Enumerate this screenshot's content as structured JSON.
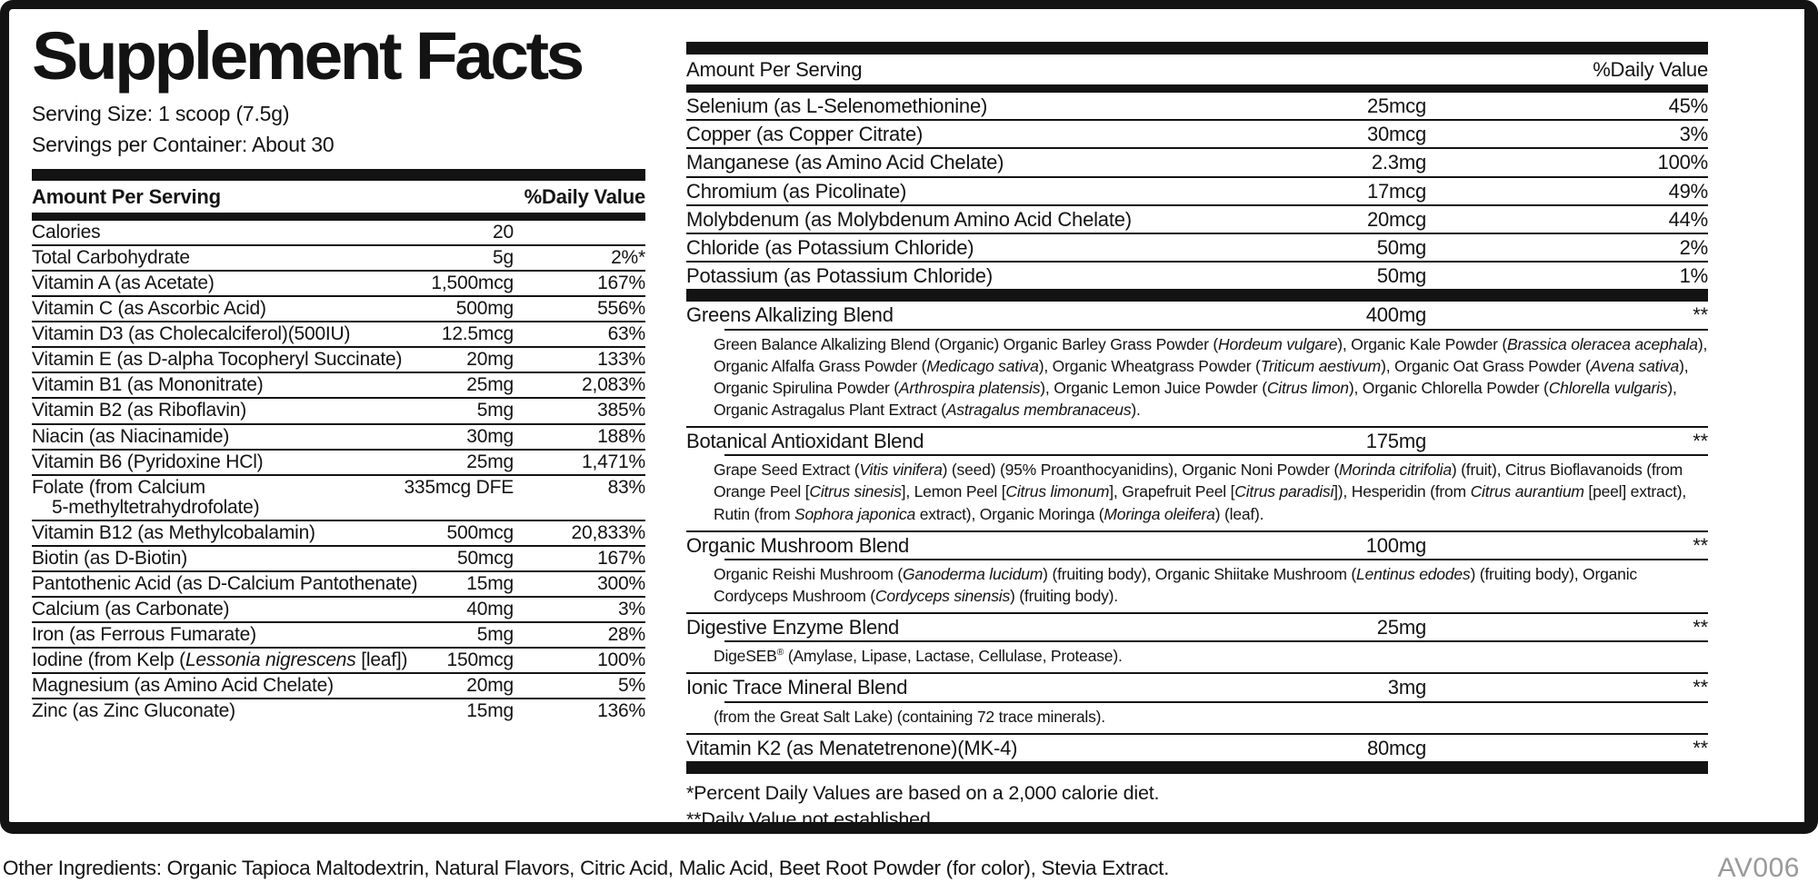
{
  "label": {
    "title": "Supplement Facts",
    "serving_size": "Serving Size: 1 scoop (7.5g)",
    "servings_per_container": "Servings per Container: About 30",
    "column_headers": {
      "amount": "Amount Per Serving",
      "daily_value": "%Daily Value"
    },
    "left_rows": [
      {
        "name": "Calories",
        "amount": "20",
        "dv": ""
      },
      {
        "name": "Total Carbohydrate",
        "amount": "5g",
        "dv": "2%*"
      },
      {
        "name": "Vitamin A (as Acetate)",
        "amount": "1,500mcg",
        "dv": "167%"
      },
      {
        "name": "Vitamin C (as Ascorbic Acid)",
        "amount": "500mg",
        "dv": "556%"
      },
      {
        "name": "Vitamin D3 (as Cholecalciferol)(500IU)",
        "amount": "12.5mcg",
        "dv": "63%"
      },
      {
        "name": "Vitamin E (as D-alpha Tocopheryl Succinate)",
        "amount": "20mg",
        "dv": "133%"
      },
      {
        "name": "Vitamin B1 (as Mononitrate)",
        "amount": "25mg",
        "dv": "2,083%"
      },
      {
        "name": "Vitamin B2 (as Riboflavin)",
        "amount": "5mg",
        "dv": "385%"
      },
      {
        "name": "Niacin (as Niacinamide)",
        "amount": "30mg",
        "dv": "188%"
      },
      {
        "name": "Vitamin B6 (Pyridoxine HCl)",
        "amount": "25mg",
        "dv": "1,471%"
      },
      {
        "name": "Folate (from Calcium",
        "name2": "5-methyltetrahydrofolate)",
        "amount": "335mcg DFE",
        "dv": "83%"
      },
      {
        "name": "Vitamin B12 (as Methylcobalamin)",
        "amount": "500mcg",
        "dv": "20,833%"
      },
      {
        "name": "Biotin (as D-Biotin)",
        "amount": "50mcg",
        "dv": "167%"
      },
      {
        "name": "Pantothenic Acid (as D-Calcium Pantothenate)",
        "amount": "15mg",
        "dv": "300%"
      },
      {
        "name": "Calcium (as Carbonate)",
        "amount": "40mg",
        "dv": "3%"
      },
      {
        "name": "Iron (as Ferrous Fumarate)",
        "amount": "5mg",
        "dv": "28%"
      },
      {
        "name": [
          {
            "t": "Iodine (from Kelp ("
          },
          {
            "t": "Lessonia nigrescens",
            "i": true
          },
          {
            "t": " [leaf])"
          }
        ],
        "amount": "150mcg",
        "dv": "100%"
      },
      {
        "name": "Magnesium (as Amino Acid Chelate)",
        "amount": "20mg",
        "dv": "5%"
      },
      {
        "name": "Zinc (as Zinc Gluconate)",
        "amount": "15mg",
        "dv": "136%"
      }
    ],
    "right_rows": [
      {
        "name": "Selenium (as L-Selenomethionine)",
        "amount": "25mcg",
        "dv": "45%"
      },
      {
        "name": "Copper (as Copper Citrate)",
        "amount": "30mcg",
        "dv": "3%"
      },
      {
        "name": "Manganese (as Amino Acid Chelate)",
        "amount": "2.3mg",
        "dv": "100%"
      },
      {
        "name": "Chromium (as Picolinate)",
        "amount": "17mcg",
        "dv": "49%"
      },
      {
        "name": "Molybdenum (as Molybdenum Amino Acid Chelate)",
        "amount": "20mcg",
        "dv": "44%"
      },
      {
        "name": "Chloride (as Potassium Chloride)",
        "amount": "50mg",
        "dv": "2%"
      },
      {
        "name": "Potassium (as Potassium Chloride)",
        "amount": "50mg",
        "dv": "1%"
      }
    ],
    "blends": [
      {
        "name": "Greens Alkalizing Blend",
        "amount": "400mg",
        "dv": "**",
        "description": [
          {
            "t": "Green Balance Alkalizing Blend (Organic) Organic Barley Grass Powder ("
          },
          {
            "t": "Hordeum vulgare",
            "i": true
          },
          {
            "t": "), Organic Kale Powder ("
          },
          {
            "t": "Brassica oleracea acephala",
            "i": true
          },
          {
            "t": "), Organic Alfalfa Grass Powder ("
          },
          {
            "t": "Medicago sativa",
            "i": true
          },
          {
            "t": "), Organic Wheatgrass Powder ("
          },
          {
            "t": "Triticum aestivum",
            "i": true
          },
          {
            "t": "), Organic Oat Grass Powder ("
          },
          {
            "t": "Avena sativa",
            "i": true
          },
          {
            "t": "), Organic Spirulina Powder ("
          },
          {
            "t": "Arthrospira platensis",
            "i": true
          },
          {
            "t": "), Organic Lemon Juice Powder ("
          },
          {
            "t": "Citrus limon",
            "i": true
          },
          {
            "t": "), Organic Chlorella Powder ("
          },
          {
            "t": "Chlorella vulgaris",
            "i": true
          },
          {
            "t": "), Organic Astragalus Plant Extract ("
          },
          {
            "t": "Astragalus membranaceus",
            "i": true
          },
          {
            "t": ")."
          }
        ]
      },
      {
        "name": "Botanical Antioxidant Blend",
        "amount": "175mg",
        "dv": "**",
        "description": [
          {
            "t": "Grape Seed Extract ("
          },
          {
            "t": "Vitis vinifera",
            "i": true
          },
          {
            "t": ") (seed) (95% Proanthocyanidins), Organic Noni Powder ("
          },
          {
            "t": "Morinda citrifolia",
            "i": true
          },
          {
            "t": ") (fruit), Citrus Bioflavanoids (from Orange Peel ["
          },
          {
            "t": "Citrus sinesis",
            "i": true
          },
          {
            "t": "], Lemon Peel ["
          },
          {
            "t": "Citrus limonum",
            "i": true
          },
          {
            "t": "], Grapefruit Peel ["
          },
          {
            "t": "Citrus paradisi",
            "i": true
          },
          {
            "t": "]), Hesperidin (from "
          },
          {
            "t": "Citrus aurantium",
            "i": true
          },
          {
            "t": " [peel] extract), Rutin (from "
          },
          {
            "t": "Sophora japonica",
            "i": true
          },
          {
            "t": " extract), Organic Moringa ("
          },
          {
            "t": "Moringa oleifera",
            "i": true
          },
          {
            "t": ") (leaf)."
          }
        ]
      },
      {
        "name": "Organic Mushroom Blend",
        "amount": "100mg",
        "dv": "**",
        "description": [
          {
            "t": "Organic Reishi Mushroom ("
          },
          {
            "t": "Ganoderma lucidum",
            "i": true
          },
          {
            "t": ") (fruiting body), Organic Shiitake Mushroom ("
          },
          {
            "t": "Lentinus edodes",
            "i": true
          },
          {
            "t": ") (fruiting body), Organic Cordyceps Mushroom ("
          },
          {
            "t": "Cordyceps sinensis",
            "i": true
          },
          {
            "t": ") (fruiting body)."
          }
        ]
      },
      {
        "name": "Digestive Enzyme Blend",
        "amount": "25mg",
        "dv": "**",
        "description": [
          {
            "t": "DigeSEB"
          },
          {
            "t": "®",
            "sup": true
          },
          {
            "t": " (Amylase, Lipase, Lactase, Cellulase, Protease)."
          }
        ]
      },
      {
        "name": "Ionic Trace Mineral Blend",
        "amount": "3mg",
        "dv": "**",
        "description": [
          {
            "t": "(from the Great Salt Lake) (containing 72 trace minerals)."
          }
        ]
      },
      {
        "name": "Vitamin K2 (as Menatetrenone)(MK-4)",
        "amount": "80mcg",
        "dv": "**",
        "description": null
      }
    ],
    "footnotes": [
      "*Percent Daily Values are based on a 2,000 calorie diet.",
      "**Daily Value not established."
    ],
    "other_ingredients": "Other Ingredients: Organic Tapioca Maltodextrin, Natural Flavors, Citric Acid, Malic Acid, Beet Root Powder (for color), Stevia Extract.",
    "code": "AV006",
    "colors": {
      "ink": "#131313",
      "code_gray": "#9a9a9a"
    }
  }
}
